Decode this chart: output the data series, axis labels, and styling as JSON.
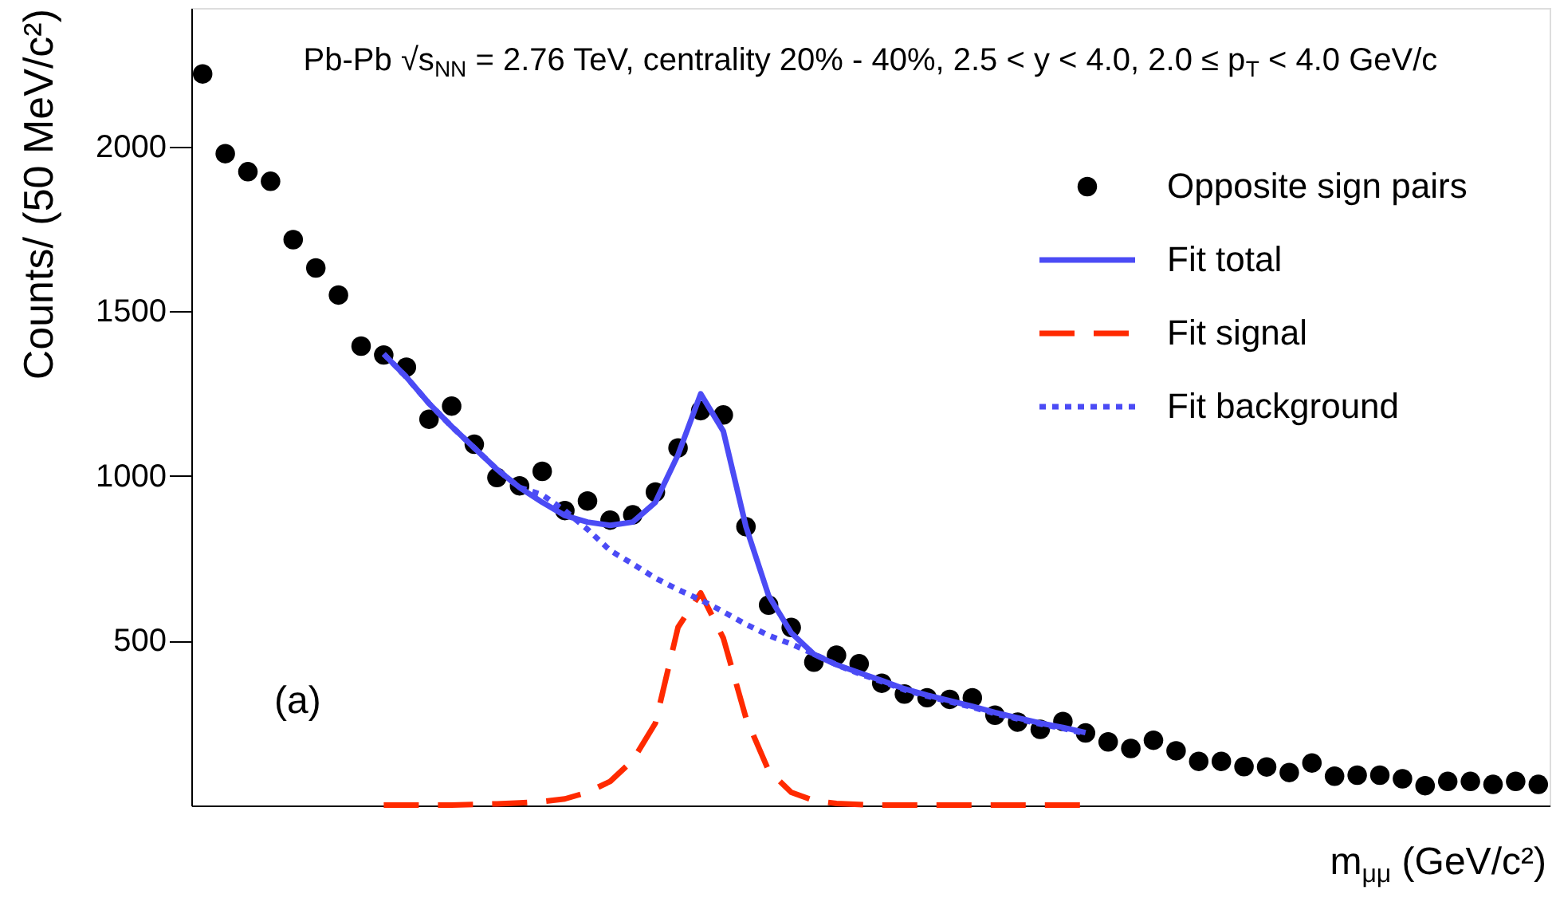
{
  "chart_data": {
    "type": "scatter",
    "xlabel": "m$_{μμ}$ (GeV/c²)",
    "ylabel": "Counts/ (50 MeV/c²)",
    "annotations": [
      "Pb-Pb √s$_{NN}$ = 2.76 TeV, centrality 20% - 40%, 2.5 < y < 4.0, 2.0 ≤ p$_{T}$ < 4.0 GeV/c",
      "(a)"
    ],
    "categories": [
      null,
      null,
      null,
      null,
      null,
      null,
      null,
      null,
      null,
      null,
      null,
      null,
      null,
      null,
      null,
      null,
      null,
      null,
      null,
      null,
      null,
      null,
      null,
      null,
      null,
      null,
      null,
      null,
      null,
      null,
      null,
      null,
      null,
      null,
      null,
      null,
      null,
      null,
      null,
      null,
      null,
      null,
      null,
      null,
      null,
      null,
      null,
      null,
      null,
      null,
      null,
      null,
      null,
      null,
      null,
      null,
      null,
      null,
      null,
      null
    ],
    "series": [
      {
        "name": "Opposite sign pairs",
        "type": "scatter",
        "marker": "circle",
        "color": "#000000",
        "values": [
          2220,
          1978,
          1923,
          1894,
          1717,
          1631,
          1549,
          1394,
          1367,
          1330,
          1172,
          1212,
          1096,
          995,
          970,
          1014,
          895,
          924,
          866,
          882,
          951,
          1085,
          1198,
          1185,
          846,
          608,
          540,
          435,
          456,
          430,
          371,
          338,
          327,
          322,
          327,
          274,
          253,
          231,
          255,
          220,
          193,
          173,
          198,
          166,
          134,
          134,
          118,
          117,
          100,
          129,
          89,
          92,
          92,
          81,
          60,
          73,
          73,
          64,
          73,
          64
        ]
      },
      {
        "name": "Fit total",
        "type": "line",
        "line_style": "solid",
        "color": "#4b4bf5",
        "values": [
          null,
          null,
          null,
          null,
          null,
          null,
          null,
          null,
          1370,
          1300,
          1220,
          1150,
          1085,
          1020,
          965,
          920,
          880,
          860,
          850,
          860,
          920,
          1064,
          1249,
          1136,
          846,
          637,
          524,
          459,
          427,
          403,
          379,
          354,
          335,
          318,
          301,
          282,
          266,
          250,
          237,
          221,
          null,
          null,
          null,
          null,
          null,
          null,
          null,
          null,
          null,
          null,
          null,
          null,
          null,
          null,
          null,
          null,
          null,
          null,
          null,
          null
        ]
      },
      {
        "name": "Fit signal",
        "type": "line",
        "line_style": "dashed",
        "color": "#ff2a00",
        "values": [
          null,
          null,
          null,
          null,
          null,
          null,
          null,
          null,
          1,
          1,
          1,
          1,
          3,
          5,
          8,
          12,
          20,
          40,
          73,
          137,
          250,
          541,
          645,
          508,
          266,
          106,
          40,
          15,
          6,
          3,
          1,
          1,
          1,
          1,
          1,
          1,
          1,
          1,
          1,
          1,
          null,
          null,
          null,
          null,
          null,
          null,
          null,
          null,
          null,
          null,
          null,
          null,
          null,
          null,
          null,
          null,
          null,
          null,
          null,
          null
        ]
      },
      {
        "name": "Fit background",
        "type": "line",
        "line_style": "dotted",
        "color": "#4b4bf5",
        "values": [
          null,
          null,
          null,
          null,
          null,
          null,
          null,
          null,
          1370,
          1300,
          1220,
          1150,
          1085,
          1020,
          965,
          943,
          895,
          838,
          774,
          733,
          690,
          655,
          624,
          588,
          550,
          516,
          490,
          460,
          427,
          400,
          376,
          351,
          332,
          315,
          298,
          279,
          263,
          247,
          234,
          218,
          null,
          null,
          null,
          null,
          null,
          null,
          null,
          null,
          null,
          null,
          null,
          null,
          null,
          null,
          null,
          null,
          null,
          null,
          null,
          null
        ]
      }
    ],
    "ylim": [
      0,
      2420
    ],
    "yticks": [
      500,
      1000,
      1500,
      2000
    ],
    "tick_labels": "y",
    "grid": false,
    "legend": "top right"
  }
}
